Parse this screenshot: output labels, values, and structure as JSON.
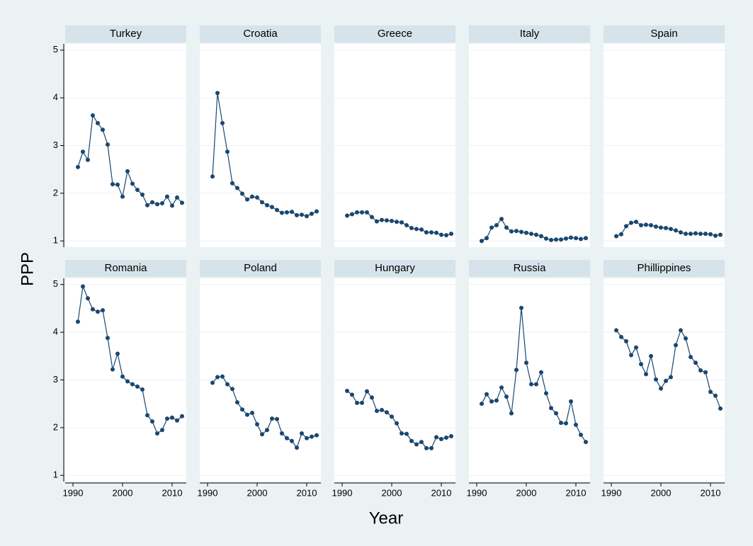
{
  "chart_data": {
    "type": "line",
    "x_label": "Year",
    "y_label": "PPP",
    "x": [
      1991,
      1992,
      1993,
      1994,
      1995,
      1996,
      1997,
      1998,
      1999,
      2000,
      2001,
      2002,
      2003,
      2004,
      2005,
      2006,
      2007,
      2008,
      2009,
      2010,
      2011,
      2012
    ],
    "xlim": [
      1988.43,
      2012.86
    ],
    "ylim": [
      0.87,
      5.13
    ],
    "xticks": [
      1990,
      2000,
      2010
    ],
    "yticks": [
      1,
      2,
      3,
      4,
      5
    ],
    "grid": true,
    "color": "#1a476f",
    "panels": [
      {
        "name": "Turkey",
        "values": [
          2.55,
          2.87,
          2.7,
          3.63,
          3.47,
          3.33,
          3.02,
          2.19,
          2.18,
          1.93,
          2.46,
          2.2,
          2.07,
          1.97,
          1.75,
          1.81,
          1.77,
          1.79,
          1.93,
          1.74,
          1.91,
          1.8
        ]
      },
      {
        "name": "Croatia",
        "values": [
          2.35,
          4.1,
          3.47,
          2.87,
          2.21,
          2.11,
          1.99,
          1.87,
          1.93,
          1.91,
          1.81,
          1.75,
          1.71,
          1.65,
          1.59,
          1.6,
          1.61,
          1.54,
          1.55,
          1.52,
          1.57,
          1.62
        ]
      },
      {
        "name": "Greece",
        "values": [
          1.53,
          1.56,
          1.6,
          1.6,
          1.6,
          1.5,
          1.41,
          1.44,
          1.43,
          1.42,
          1.4,
          1.39,
          1.33,
          1.27,
          1.25,
          1.24,
          1.18,
          1.18,
          1.17,
          1.13,
          1.12,
          1.15
        ]
      },
      {
        "name": "Italy",
        "values": [
          1.0,
          1.06,
          1.28,
          1.33,
          1.46,
          1.28,
          1.2,
          1.21,
          1.19,
          1.17,
          1.15,
          1.13,
          1.1,
          1.05,
          1.02,
          1.03,
          1.03,
          1.05,
          1.07,
          1.06,
          1.04,
          1.06
        ]
      },
      {
        "name": "Spain",
        "values": [
          1.1,
          1.14,
          1.31,
          1.38,
          1.4,
          1.33,
          1.34,
          1.33,
          1.3,
          1.28,
          1.27,
          1.25,
          1.22,
          1.18,
          1.15,
          1.15,
          1.16,
          1.15,
          1.15,
          1.14,
          1.11,
          1.13
        ]
      },
      {
        "name": "Romania",
        "values": [
          4.22,
          4.96,
          4.71,
          4.48,
          4.43,
          4.46,
          3.88,
          3.22,
          3.55,
          3.07,
          2.97,
          2.91,
          2.86,
          2.8,
          2.26,
          2.13,
          1.88,
          1.95,
          2.19,
          2.21,
          2.15,
          2.24
        ]
      },
      {
        "name": "Poland",
        "values": [
          2.94,
          3.06,
          3.07,
          2.91,
          2.81,
          2.53,
          2.38,
          2.27,
          2.31,
          2.07,
          1.86,
          1.95,
          2.19,
          2.18,
          1.88,
          1.78,
          1.72,
          1.58,
          1.88,
          1.78,
          1.81,
          1.84
        ]
      },
      {
        "name": "Hungary",
        "values": [
          2.77,
          2.69,
          2.52,
          2.52,
          2.76,
          2.63,
          2.35,
          2.37,
          2.32,
          2.23,
          2.09,
          1.88,
          1.87,
          1.72,
          1.65,
          1.7,
          1.57,
          1.57,
          1.8,
          1.76,
          1.79,
          1.82
        ]
      },
      {
        "name": "Russia",
        "values": [
          2.5,
          2.7,
          2.55,
          2.57,
          2.84,
          2.65,
          2.3,
          3.21,
          4.51,
          3.36,
          2.91,
          2.91,
          3.16,
          2.72,
          2.41,
          2.3,
          2.1,
          2.09,
          2.55,
          2.06,
          1.85,
          1.7
        ]
      },
      {
        "name": "Phillippines",
        "values": [
          4.04,
          3.9,
          3.81,
          3.52,
          3.68,
          3.33,
          3.12,
          3.5,
          3.01,
          2.82,
          2.98,
          3.06,
          3.73,
          4.04,
          3.87,
          3.48,
          3.36,
          3.2,
          3.16,
          2.75,
          2.67,
          2.4
        ]
      }
    ]
  }
}
